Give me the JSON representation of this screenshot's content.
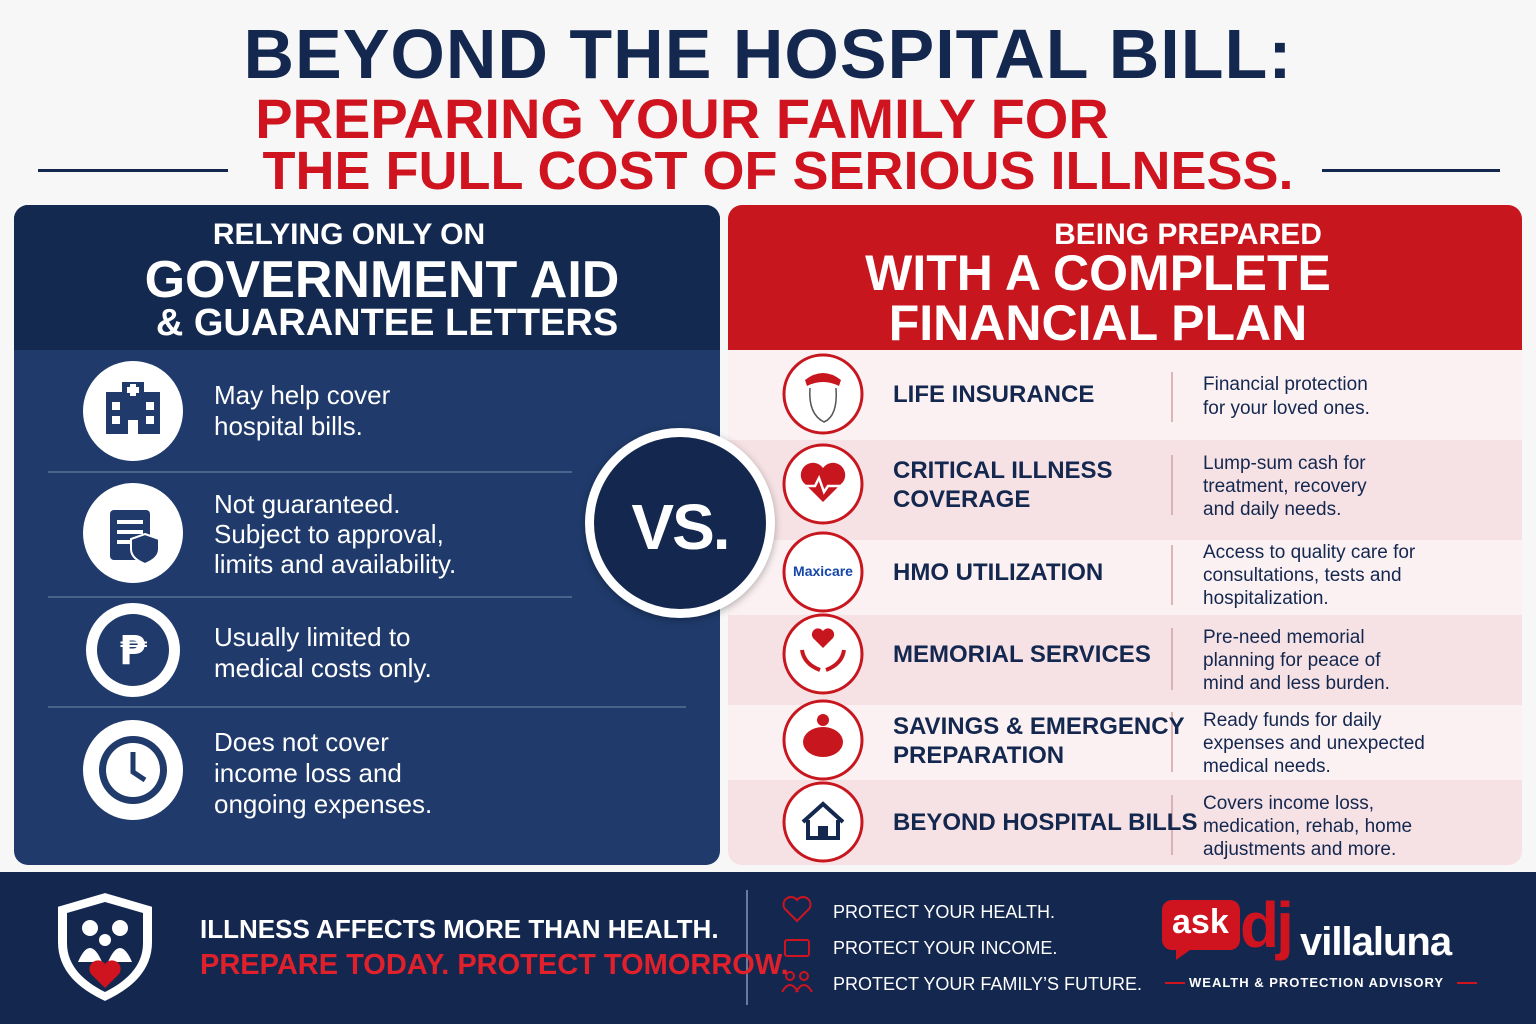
{
  "header": {
    "title_line1": "BEYOND THE HOSPITAL BILL:",
    "title_line2": "PREPARING YOUR FAMILY FOR",
    "title_line3": "THE FULL COST OF SERIOUS ILLNESS."
  },
  "left": {
    "heading_small": "RELYING ONLY ON",
    "heading_big": "GOVERNMENT AID",
    "heading_sub": "& GUARANTEE LETTERS",
    "items": [
      {
        "lines": [
          "May help cover",
          "hospital bills."
        ]
      },
      {
        "lines": [
          "Not guaranteed.",
          "Subject to approval,",
          "limits and availability."
        ]
      },
      {
        "lines": [
          "Usually limited to",
          "medical costs only."
        ]
      },
      {
        "lines": [
          "Does not cover",
          "income loss and",
          "ongoing expenses."
        ]
      }
    ]
  },
  "vs": "VS.",
  "right": {
    "heading_small": "BEING PREPARED",
    "heading_big_lines": [
      "WITH A COMPLETE",
      "FINANCIAL PLAN"
    ],
    "rows": [
      {
        "title_lines": [
          "LIFE INSURANCE"
        ],
        "desc_lines": [
          "Financial protection",
          "for your loved ones."
        ]
      },
      {
        "title_lines": [
          "CRITICAL ILLNESS",
          "COVERAGE"
        ],
        "desc_lines": [
          "Lump-sum cash for",
          "treatment, recovery",
          "and daily needs."
        ]
      },
      {
        "logo": "Maxicare",
        "title_lines": [
          "HMO UTILIZATION"
        ],
        "desc_lines": [
          "Access to quality care for",
          "consultations, tests and",
          "hospitalization."
        ]
      },
      {
        "title_lines": [
          "MEMORIAL SERVICES"
        ],
        "desc_lines": [
          "Pre-need memorial",
          "planning for peace of",
          "mind and less burden."
        ]
      },
      {
        "title_lines": [
          "SAVINGS & EMERGENCY",
          "PREPARATION"
        ],
        "desc_lines": [
          "Ready funds for daily",
          "expenses and unexpected",
          "medical needs."
        ]
      },
      {
        "title_lines": [
          "BEYOND HOSPITAL BILLS"
        ],
        "desc_lines": [
          "Covers income loss,",
          "medication, rehab, home",
          "adjustments and more."
        ]
      }
    ]
  },
  "footer": {
    "message1": "ILLNESS AFFECTS MORE THAN HEALTH.",
    "message2": "PREPARE TODAY. PROTECT TOMORROW.",
    "protect": [
      "PROTECT YOUR HEALTH.",
      "PROTECT YOUR INCOME.",
      "PROTECT YOUR FAMILY’S FUTURE."
    ],
    "brand": {
      "ask": "ask",
      "dj": "dj",
      "name": "villaluna",
      "tagline": "WEALTH & PROTECTION ADVISORY"
    }
  }
}
